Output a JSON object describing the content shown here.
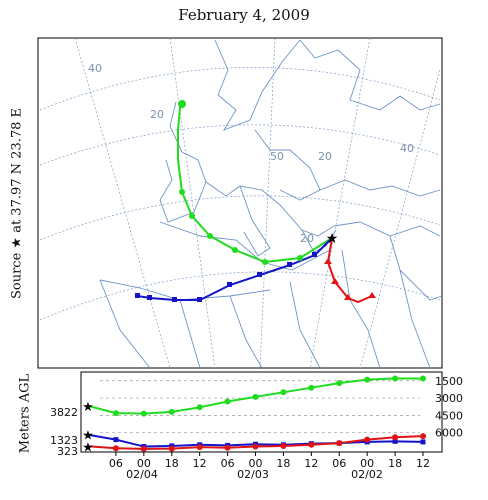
{
  "header": {
    "title": "February 4, 2009",
    "source_label": "Source",
    "source_symbol": "★",
    "source_at": "at 37.97 N",
    "source_lon": "23.78 E"
  },
  "map": {
    "graticule_labels": [
      "40",
      "20",
      "50",
      "20",
      "40",
      "20"
    ],
    "colors": {
      "green": "#1fdc1f",
      "blue": "#1414c8",
      "red": "#e01414",
      "land": "#6f93c6",
      "grid": "#7f9ec6"
    }
  },
  "altitude_panel": {
    "ylabel": "Meters AGL",
    "start_heights": [
      "3822",
      "1323",
      "323"
    ],
    "yticks": [
      "6000",
      "4500",
      "3000",
      "1500"
    ],
    "hour_ticks": [
      "06",
      "00",
      "18",
      "12",
      "06",
      "00",
      "18",
      "12",
      "06",
      "00",
      "18",
      "12"
    ],
    "date_ticks": [
      "02/04",
      "02/03",
      "02/02"
    ]
  },
  "chart_data": {
    "type": "line",
    "title": "February 4, 2009",
    "ylabel": "Meters AGL",
    "ylim": [
      0,
      6500
    ],
    "yticks": [
      1500,
      3000,
      4500,
      6000
    ],
    "x_hours_back": [
      0,
      6,
      12,
      18,
      24,
      30,
      36,
      42,
      48,
      54,
      60,
      66,
      72
    ],
    "series": [
      {
        "color": "green",
        "start": 3822,
        "values": [
          3822,
          3200,
          3150,
          3300,
          3700,
          4200,
          4600,
          5000,
          5400,
          5800,
          6100,
          6200,
          6200
        ]
      },
      {
        "color": "blue",
        "start": 1323,
        "values": [
          1323,
          900,
          300,
          350,
          450,
          400,
          500,
          450,
          550,
          600,
          700,
          750,
          700
        ]
      },
      {
        "color": "red",
        "start": 323,
        "values": [
          323,
          150,
          100,
          120,
          250,
          200,
          300,
          350,
          450,
          600,
          900,
          1100,
          1200
        ]
      }
    ]
  }
}
